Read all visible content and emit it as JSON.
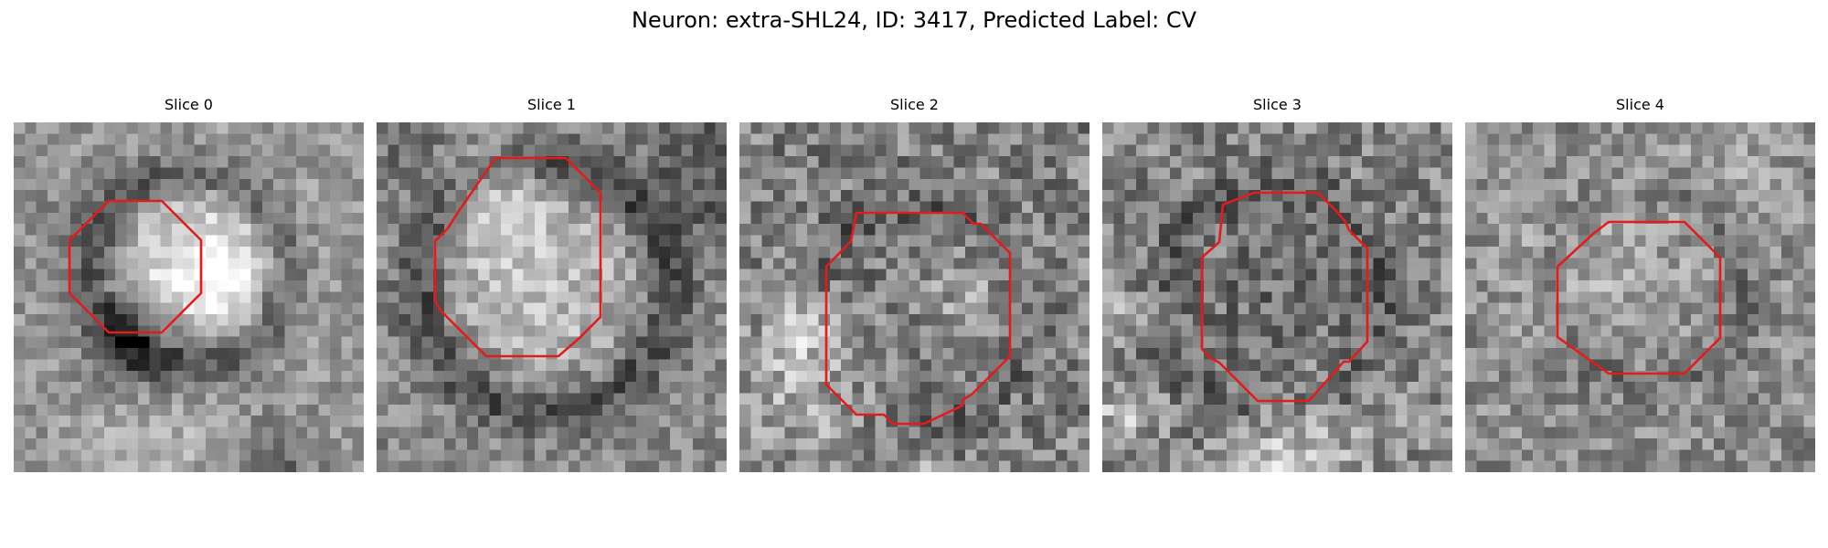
{
  "figure": {
    "title": "Neuron: extra-SHL24, ID: 3417, Predicted Label: CV"
  },
  "panels": [
    {
      "title": "Slice 0"
    },
    {
      "title": "Slice 1"
    },
    {
      "title": "Slice 2"
    },
    {
      "title": "Slice 3"
    },
    {
      "title": "Slice 4"
    }
  ],
  "colors": {
    "contour": "#e31b1b",
    "colormap": "grayscale"
  }
}
